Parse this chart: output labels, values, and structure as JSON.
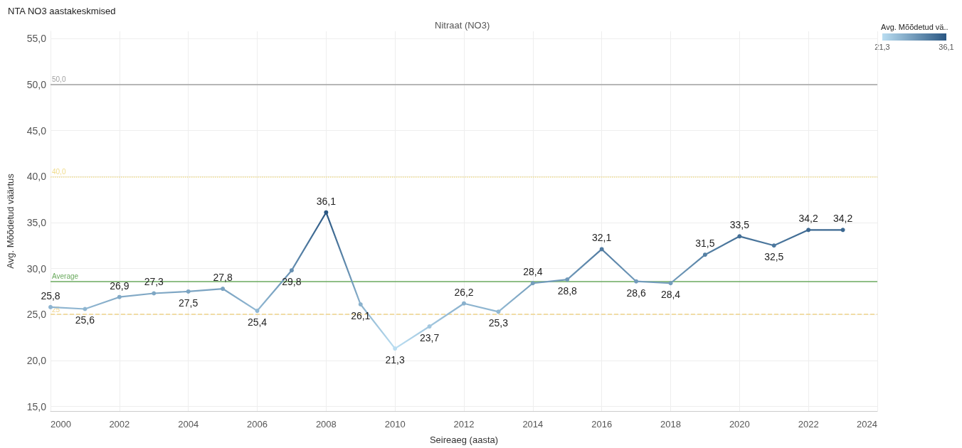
{
  "chart_data": {
    "type": "line",
    "title": "NTA NO3 aastakeskmised",
    "subtitle": "Nitraat (NO3)",
    "xlabel": "Seireaeg (aasta)",
    "ylabel": "Avg. Mõõdetud väärtus",
    "clabel": "Avg. Mõõdetud vä..",
    "x": [
      2000,
      2001,
      2002,
      2003,
      2004,
      2005,
      2006,
      2007,
      2008,
      2009,
      2010,
      2011,
      2012,
      2013,
      2014,
      2015,
      2016,
      2017,
      2018,
      2019,
      2020,
      2021,
      2022,
      2023
    ],
    "values": [
      25.8,
      25.6,
      26.9,
      27.3,
      27.5,
      27.8,
      25.4,
      29.8,
      36.1,
      26.1,
      21.3,
      23.7,
      26.2,
      25.3,
      28.4,
      28.8,
      32.1,
      28.6,
      28.4,
      31.5,
      33.5,
      32.5,
      34.2,
      34.2
    ],
    "colors": [
      "#8eb4d0",
      "#8fb6d1",
      "#83aac7",
      "#7fa7c4",
      "#7da5c3",
      "#7aa2c1",
      "#91b8d3",
      "#6790b2",
      "#2a5783",
      "#8bb2cd",
      "#b9ddf1",
      "#a2c7df",
      "#8ab1cd",
      "#92b9d3",
      "#749dbc",
      "#7099b9",
      "#517ba1",
      "#729bbb",
      "#749dbc",
      "#5681a5",
      "#436f96",
      "#4d789e",
      "#3c6891",
      "#3c6891"
    ],
    "clim": [
      21.3,
      36.1
    ],
    "cticks": [
      {
        "value": 21.3,
        "label": "21,3"
      },
      {
        "value": 36.1,
        "label": "36,1"
      }
    ],
    "xlim": [
      2000,
      2024
    ],
    "xticks": [
      2000,
      2002,
      2004,
      2006,
      2008,
      2010,
      2012,
      2014,
      2016,
      2018,
      2020,
      2022,
      2024
    ],
    "ylim": [
      14.5,
      55.8
    ],
    "yticks": [
      {
        "value": 15,
        "label": "15,0"
      },
      {
        "value": 20,
        "label": "20,0"
      },
      {
        "value": 25,
        "label": "25,0"
      },
      {
        "value": 30,
        "label": "30,0"
      },
      {
        "value": 35,
        "label": "35,0"
      },
      {
        "value": 40,
        "label": "40,0"
      },
      {
        "value": 45,
        "label": "45,0"
      },
      {
        "value": 50,
        "label": "50,0"
      },
      {
        "value": 55,
        "label": "55,0"
      }
    ],
    "value_labels": [
      "25,8",
      "25,6",
      "26,9",
      "27,3",
      "27,5",
      "27,8",
      "25,4",
      "29,8",
      "36,1",
      "26,1",
      "21,3",
      "23,7",
      "26,2",
      "25,3",
      "28,4",
      "28,8",
      "32,1",
      "28,6",
      "28,4",
      "31,5",
      "33,5",
      "32,5",
      "34,2",
      "34,2"
    ],
    "ref_lines": [
      {
        "axis": "y",
        "value": 50,
        "label": "50,0",
        "color": "#a0a0a0",
        "line_style": "solid"
      },
      {
        "axis": "y",
        "value": 40,
        "label": "40,0",
        "color": "#f0dc8c",
        "line_style": "dotted"
      },
      {
        "axis": "y",
        "value": 28.6,
        "label": "Average",
        "color": "#6aaa5e",
        "line_style": "solid"
      },
      {
        "axis": "y",
        "value": 25,
        "label": "25",
        "color": "#f0d48c",
        "line_style": "dashed"
      }
    ],
    "grid": true,
    "marker": "circle",
    "line_style": "solid"
  }
}
